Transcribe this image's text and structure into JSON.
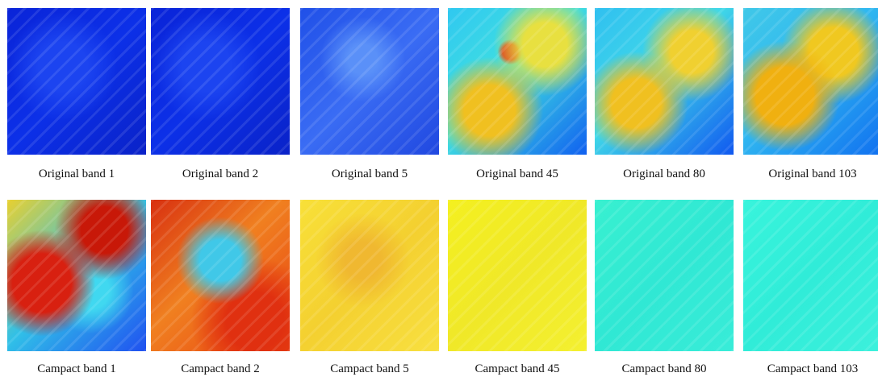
{
  "rows": [
    {
      "panels": [
        {
          "caption": "Original band 1"
        },
        {
          "caption": "Original band 2"
        },
        {
          "caption": "Original band 5"
        },
        {
          "caption": "Original band 45"
        },
        {
          "caption": "Original band 80"
        },
        {
          "caption": "Original band 103"
        }
      ]
    },
    {
      "panels": [
        {
          "caption": "Campact band 1"
        },
        {
          "caption": "Campact band 2"
        },
        {
          "caption": "Campact band 5"
        },
        {
          "caption": "Campact band 45"
        },
        {
          "caption": "Campact band 80"
        },
        {
          "caption": "Campact band 103"
        }
      ]
    }
  ]
}
